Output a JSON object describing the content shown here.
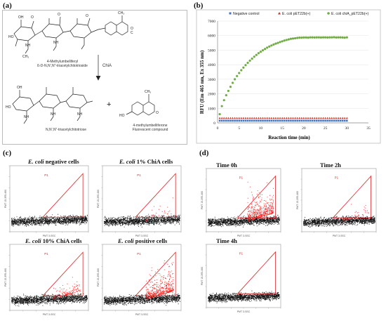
{
  "panel_labels": {
    "a": "(a)",
    "b": "(b)",
    "c": "(c)",
    "d": "(d)"
  },
  "panel_a": {
    "substrate_name_1": "4-Methylumbelliferyl",
    "substrate_name_2": "ß-D-N,N',N\"-triacetylchitotrioside",
    "enzyme": "ChiA",
    "product_1_name": "N,N',N\"-triacetylchitotriose",
    "product_2_name_1": "4-methylumbelliferone",
    "product_2_name_2": "Fluorescent compound",
    "plus": "+",
    "atoms": {
      "oh": "OH",
      "ho": "HO",
      "o": "O",
      "nh": "NH",
      "ch3": "CH₃",
      "c": "C",
      "o2": "O"
    }
  },
  "chart_data": {
    "type": "scatter",
    "title": "",
    "xlabel": "Reaction time (min)",
    "ylabel": "RFU (Em 465 nm, Ex 355 nm)",
    "xlim": [
      0,
      35
    ],
    "ylim": [
      0,
      7000
    ],
    "xticks": [
      "0",
      "5",
      "10",
      "15",
      "20",
      "25",
      "30",
      "35"
    ],
    "yticks": [
      "0",
      "1000",
      "2000",
      "3000",
      "4000",
      "5000",
      "6000",
      "7000"
    ],
    "legend_position": "top",
    "series": [
      {
        "name": "Negative control",
        "color": "#4472c4",
        "marker": "square",
        "flat_value": 150
      },
      {
        "name": "E. coli pET22b(+)",
        "color": "#c0392b",
        "marker": "triangle",
        "flat_value": 330
      },
      {
        "name": "E. coli chiA_pET22b(+)",
        "color": "#70ad47",
        "marker": "circle",
        "x": [
          0.5,
          1.0,
          1.5,
          2.0,
          2.5,
          3.0,
          3.5,
          4.0,
          4.5,
          5.0,
          5.5,
          6.0,
          6.5,
          7.0,
          7.5,
          8.0,
          8.5,
          9.0,
          9.5,
          10.0,
          10.5,
          11.0,
          11.5,
          12.0,
          12.5,
          13.0,
          13.5,
          14.0,
          14.5,
          15.0,
          15.5,
          16.0,
          16.5,
          17.0,
          17.5,
          18.0,
          18.5,
          19.0,
          19.5,
          20.0,
          20.5,
          21.0,
          21.5,
          22.0,
          22.5,
          23.0,
          23.5,
          24.0,
          24.5,
          25.0,
          25.5,
          26.0,
          26.5,
          27.0,
          27.5,
          28.0,
          28.5,
          29.0,
          29.5,
          30.0
        ],
        "y": [
          600,
          1150,
          1560,
          1900,
          2200,
          2480,
          2750,
          3000,
          3220,
          3430,
          3620,
          3800,
          3970,
          4130,
          4280,
          4420,
          4550,
          4670,
          4790,
          4890,
          4990,
          5080,
          5170,
          5250,
          5320,
          5390,
          5450,
          5500,
          5560,
          5610,
          5660,
          5700,
          5740,
          5780,
          5800,
          5820,
          5840,
          5860,
          5860,
          5870,
          5870,
          5860,
          5880,
          5880,
          5870,
          5880,
          5880,
          5870,
          5880,
          5880,
          5870,
          5880,
          5880,
          5890,
          5870,
          5880,
          5880,
          5870,
          5860,
          5880
        ]
      }
    ]
  },
  "flow_c": {
    "panels": [
      {
        "title_italic": "E. coli",
        "title_rest": " negative cells",
        "gate": "P1",
        "red_fraction": 0.0
      },
      {
        "title_italic": "E. coli",
        "title_rest": " 1% ChiA cells",
        "gate": "P1",
        "red_fraction": 0.02
      },
      {
        "title_italic": "E. coli",
        "title_rest": " 10% ChiA cells",
        "gate": "P1",
        "red_fraction": 0.1
      },
      {
        "title_italic": "E. coli",
        "title_rest": " positive cells",
        "gate": "P1",
        "red_fraction": 0.35
      }
    ],
    "xaxis": "PMT 3-SSC",
    "yaxis": "PMT 15-395-460"
  },
  "flow_d": {
    "panels": [
      {
        "title": "Time 0h",
        "gate": "P1",
        "red_fraction": 0.35
      },
      {
        "title": "Time 2h",
        "gate": "P1",
        "red_fraction": 0.03
      },
      {
        "title": "Time 4h",
        "gate": "P1",
        "red_fraction": 0.0
      }
    ],
    "xaxis": "PMT 3-SSC",
    "yaxis": "PMT 15-395-460"
  },
  "colors": {
    "frame": "#999999",
    "gate": "#e0262b",
    "dots": "#111111",
    "red_dots": "#ff1a1a",
    "green": "#70ad47"
  }
}
